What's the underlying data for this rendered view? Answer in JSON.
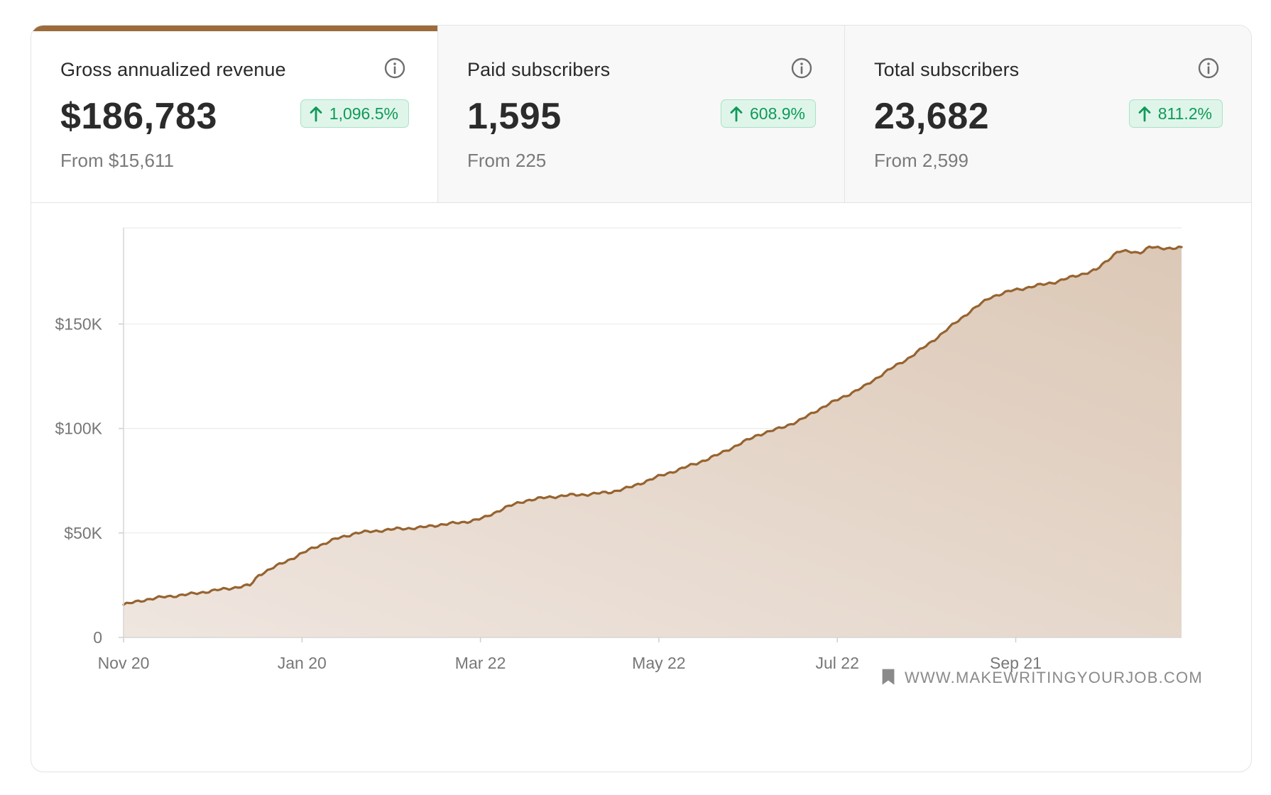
{
  "metrics": [
    {
      "label": "Gross annualized revenue",
      "value": "$186,783",
      "change": "1,096.5%",
      "from": "From $15,611",
      "active": true
    },
    {
      "label": "Paid subscribers",
      "value": "1,595",
      "change": "608.9%",
      "from": "From 225",
      "active": false
    },
    {
      "label": "Total subscribers",
      "value": "23,682",
      "change": "811.2%",
      "from": "From 2,599",
      "active": false
    }
  ],
  "watermark": "WWW.MAKEWRITINGYOURJOB.COM",
  "colors": {
    "accent": "#9c6b3c",
    "line": "#96632f",
    "fill_top": "#dcc8b6",
    "fill_bottom": "#efe6e0",
    "badge_text": "#0f9a58",
    "badge_bg": "#dff5ea"
  },
  "chart_data": {
    "type": "area",
    "series": [
      {
        "x": [
          0,
          0.02,
          0.04,
          0.06,
          0.08,
          0.1,
          0.12,
          0.128,
          0.14,
          0.16,
          0.18,
          0.2,
          0.22,
          0.24,
          0.26,
          0.28,
          0.3,
          0.32,
          0.34,
          0.36,
          0.38,
          0.4,
          0.42,
          0.44,
          0.46,
          0.48,
          0.5,
          0.52,
          0.54,
          0.56,
          0.58,
          0.6,
          0.62,
          0.64,
          0.66,
          0.68,
          0.7,
          0.72,
          0.74,
          0.76,
          0.78,
          0.8,
          0.82,
          0.84,
          0.86,
          0.88,
          0.9,
          0.92,
          0.94,
          0.96,
          0.97,
          0.98,
          1.0
        ],
        "values": [
          15611,
          18000,
          19500,
          20500,
          22000,
          23500,
          25000,
          30000,
          33000,
          38000,
          43000,
          47000,
          50000,
          51000,
          52000,
          52500,
          54000,
          55000,
          57000,
          62000,
          65500,
          67000,
          68000,
          68500,
          69500,
          72000,
          76000,
          79500,
          83000,
          87000,
          92000,
          97000,
          100000,
          104000,
          110000,
          115000,
          120000,
          127000,
          133000,
          140000,
          148000,
          156000,
          163000,
          166000,
          168000,
          170000,
          173000,
          176000,
          185000,
          184000,
          187000,
          186000,
          186783
        ]
      }
    ],
    "x_tick_labels": [
      "Nov 20",
      "Jan 20",
      "Mar 22",
      "May 22",
      "Jul 22",
      "Sep 21"
    ],
    "y_ticks": [
      0,
      50000,
      100000,
      150000
    ],
    "y_tick_labels": [
      "0",
      "$50K",
      "$100K",
      "$150K"
    ],
    "ylim": [
      0,
      196000
    ],
    "grid": true
  }
}
